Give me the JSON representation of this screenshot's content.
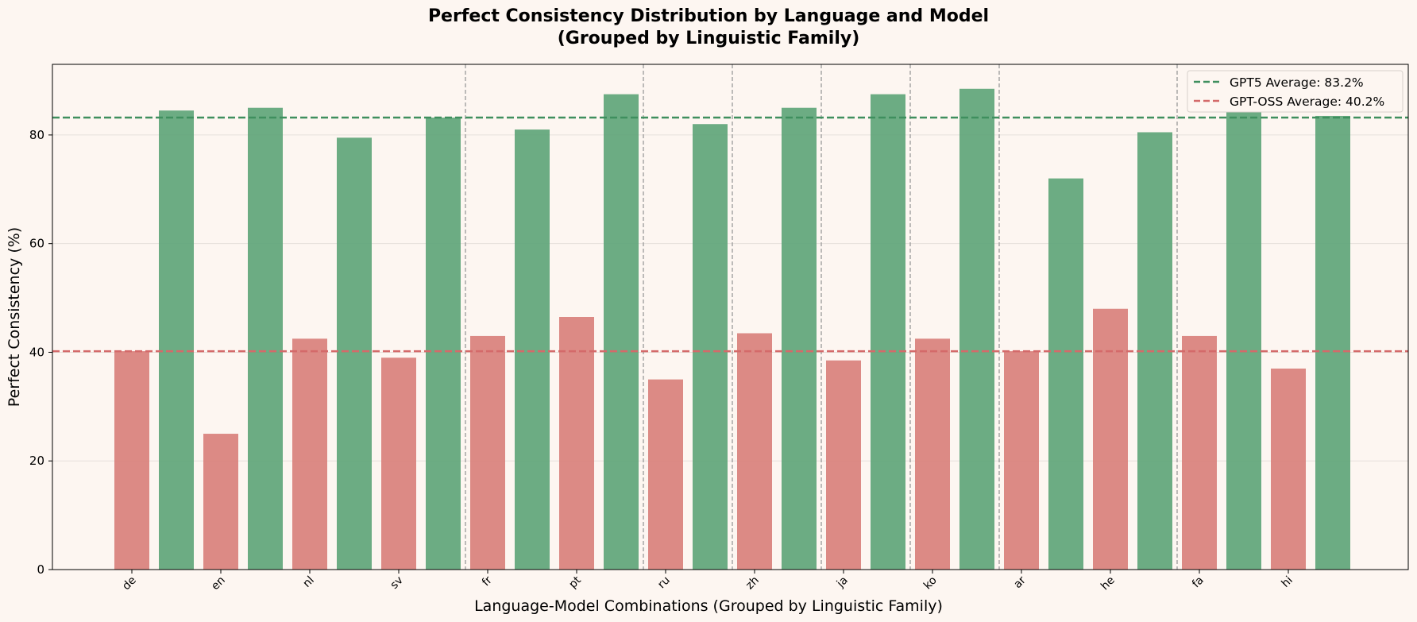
{
  "chart_data": {
    "type": "bar",
    "title": "Perfect Consistency Distribution by Language and Model",
    "subtitle": "(Grouped by Linguistic Family)",
    "xlabel": "Language-Model Combinations (Grouped by Linguistic Family)",
    "ylabel": "Perfect Consistency (%)",
    "ylim": [
      0,
      93
    ],
    "yticks": [
      0,
      20,
      40,
      60,
      80
    ],
    "grid": "horizontal",
    "legend_position": "top-right",
    "categories": [
      "de",
      "en",
      "nl",
      "sv",
      "fr",
      "pt",
      "ru",
      "zh",
      "ja",
      "ko",
      "ar",
      "he",
      "fa",
      "hi"
    ],
    "family_separators_after": [
      "sv",
      "pt",
      "ru",
      "zh",
      "ja",
      "ko",
      "he"
    ],
    "series": [
      {
        "name": "GPT-OSS",
        "color": "#d9807c",
        "values": [
          40.2,
          25.0,
          42.5,
          39.0,
          43.0,
          46.5,
          35.0,
          43.5,
          38.5,
          42.5,
          40.2,
          48.0,
          43.0,
          37.0
        ]
      },
      {
        "name": "GPT5",
        "color": "#5fa57a",
        "values": [
          84.5,
          85.0,
          79.5,
          83.2,
          81.0,
          87.5,
          82.0,
          85.0,
          87.5,
          88.5,
          72.0,
          80.5,
          84.5,
          83.5
        ]
      }
    ],
    "reference_lines": [
      {
        "name": "GPT5 Average",
        "value": 83.2,
        "color": "#3f8f5e",
        "label": "GPT5 Average: 83.2%"
      },
      {
        "name": "GPT-OSS Average",
        "value": 40.2,
        "color": "#d46a6a",
        "label": "GPT-OSS Average: 40.2%"
      }
    ]
  }
}
